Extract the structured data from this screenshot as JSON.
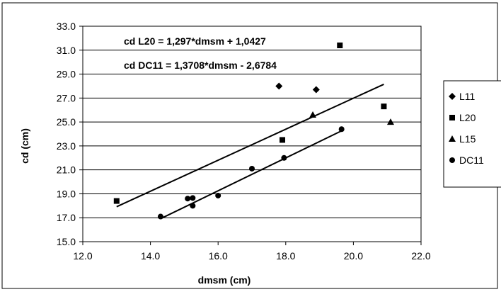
{
  "chart_data": {
    "type": "scatter",
    "xlabel": "dmsm (cm)",
    "ylabel": "cd (cm)",
    "xlim": [
      12.0,
      22.0
    ],
    "ylim": [
      15.0,
      33.0
    ],
    "x_ticks": [
      "12.0",
      "14.0",
      "16.0",
      "18.0",
      "20.0",
      "22.0"
    ],
    "y_ticks": [
      "15.0",
      "17.0",
      "19.0",
      "21.0",
      "23.0",
      "25.0",
      "27.0",
      "29.0",
      "31.0",
      "33.0"
    ],
    "grid": "horizontal",
    "legend_position": "right",
    "series": [
      {
        "name": "L11",
        "marker": "diamond",
        "color": "#000000",
        "points": [
          [
            17.8,
            28.0
          ],
          [
            18.9,
            27.7
          ]
        ]
      },
      {
        "name": "L20",
        "marker": "square",
        "color": "#000000",
        "points": [
          [
            13.0,
            18.4
          ],
          [
            17.9,
            23.5
          ],
          [
            19.6,
            31.4
          ],
          [
            20.9,
            26.3
          ]
        ]
      },
      {
        "name": "L15",
        "marker": "triangle",
        "color": "#000000",
        "points": [
          [
            18.8,
            25.6
          ],
          [
            21.1,
            25.0
          ]
        ]
      },
      {
        "name": "DC11",
        "marker": "circle",
        "color": "#000000",
        "points": [
          [
            14.3,
            17.1
          ],
          [
            15.1,
            18.6
          ],
          [
            15.25,
            18.65
          ],
          [
            15.25,
            18.0
          ],
          [
            16.0,
            18.85
          ],
          [
            17.0,
            21.1
          ],
          [
            17.95,
            22.0
          ],
          [
            19.65,
            24.4
          ]
        ]
      }
    ],
    "trendlines": [
      {
        "x": [
          13.0,
          20.9
        ],
        "y": [
          17.92,
          28.15
        ]
      },
      {
        "x": [
          14.3,
          19.65
        ],
        "y": [
          16.92,
          24.26
        ]
      }
    ],
    "annotations": [
      "cd L20 = 1,297*dmsm + 1,0427",
      "cd DC11 = 1,3708*dmsm - 2,6784"
    ]
  }
}
